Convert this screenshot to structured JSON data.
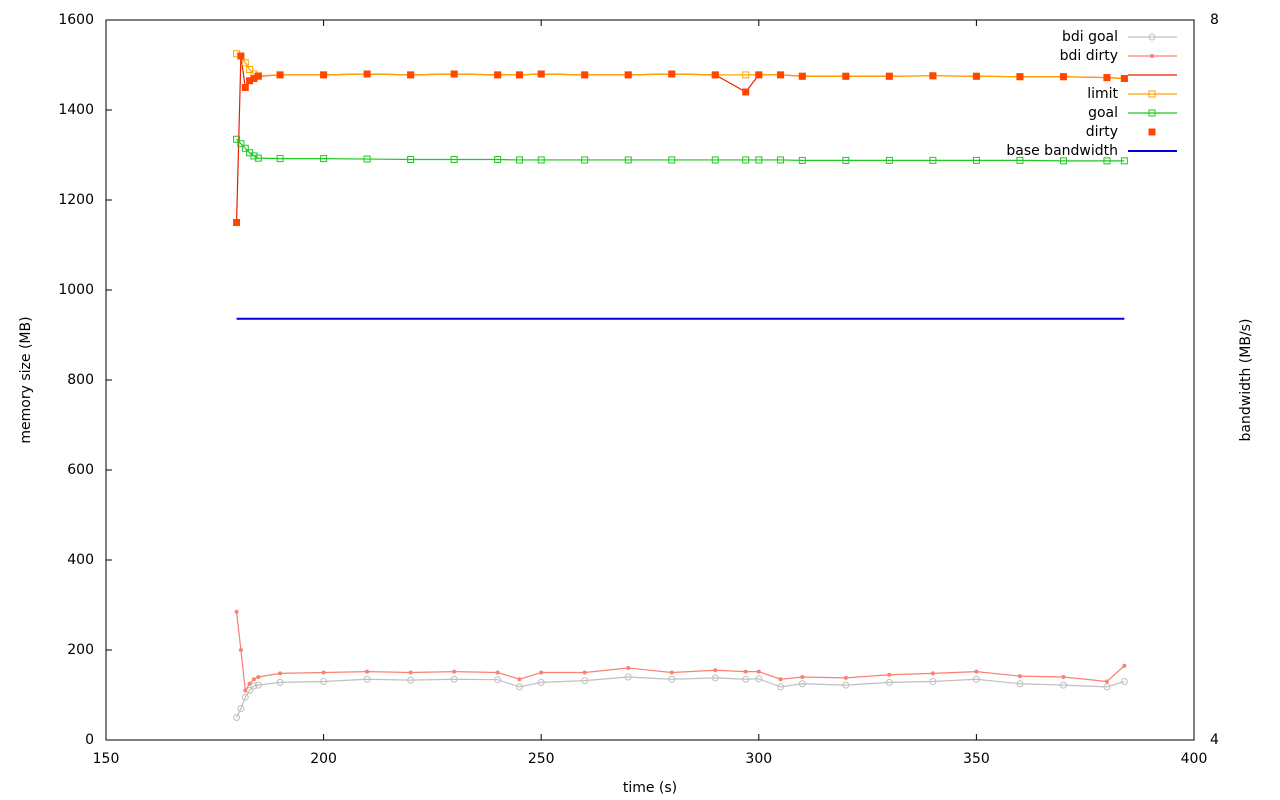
{
  "chart_data": {
    "type": "line",
    "xlabel": "time (s)",
    "ylabel": "memory size (MB)",
    "y2label": "bandwidth (MB/s)",
    "xlim": [
      150,
      400
    ],
    "xticks": [
      150,
      200,
      250,
      300,
      350,
      400
    ],
    "ylim": [
      0,
      1600
    ],
    "yticks": [
      0,
      200,
      400,
      600,
      800,
      1000,
      1200,
      1400,
      1600
    ],
    "y2lim": [
      4,
      8
    ],
    "y2ticks": [
      4,
      8
    ],
    "legend": "top-right",
    "x": [
      180,
      181,
      182,
      183,
      184,
      185,
      190,
      200,
      210,
      220,
      230,
      240,
      245,
      250,
      260,
      270,
      280,
      290,
      297,
      300,
      305,
      310,
      320,
      330,
      340,
      350,
      360,
      370,
      380,
      384
    ],
    "series": [
      {
        "name": "bdi goal",
        "color": "#c0c0c0",
        "style": "linespoints",
        "marker": "circle-open",
        "values": [
          50,
          70,
          95,
          110,
          120,
          122,
          128,
          130,
          135,
          133,
          135,
          134,
          118,
          128,
          132,
          140,
          135,
          138,
          135,
          136,
          118,
          125,
          122,
          128,
          130,
          135,
          125,
          122,
          118,
          130
        ]
      },
      {
        "name": "bdi dirty",
        "color": "#fa8072",
        "style": "linespoints",
        "marker": "circle",
        "values": [
          285,
          200,
          110,
          125,
          135,
          140,
          148,
          150,
          152,
          150,
          152,
          150,
          135,
          150,
          150,
          160,
          150,
          155,
          152,
          152,
          135,
          140,
          138,
          145,
          148,
          152,
          142,
          140,
          130,
          165
        ]
      },
      {
        "color": "#e82000",
        "style": "lines",
        "values": [
          1150,
          1520,
          1450,
          1465,
          1470,
          1475,
          1478,
          1478,
          1480,
          1478,
          1480,
          1478,
          1478,
          1480,
          1478,
          1478,
          1480,
          1478,
          1440,
          1478,
          1478,
          1475,
          1475,
          1475,
          1476,
          1475,
          1474,
          1474,
          1472,
          1470
        ]
      },
      {
        "name": "limit",
        "color": "#ffa500",
        "style": "linespoints",
        "marker": "square-open",
        "values": [
          1525,
          1520,
          1505,
          1490,
          1480,
          1476,
          1478,
          1478,
          1480,
          1478,
          1480,
          1478,
          1478,
          1480,
          1478,
          1478,
          1480,
          1478,
          1478,
          1478,
          1478,
          1475,
          1475,
          1475,
          1476,
          1475,
          1474,
          1474,
          1472,
          1470
        ]
      },
      {
        "name": "goal",
        "color": "#1ec81e",
        "style": "linespoints",
        "marker": "square-open",
        "values": [
          1335,
          1325,
          1315,
          1305,
          1298,
          1293,
          1292,
          1292,
          1291,
          1290,
          1290,
          1290,
          1289,
          1289,
          1289,
          1289,
          1289,
          1289,
          1289,
          1289,
          1289,
          1288,
          1288,
          1288,
          1288,
          1288,
          1288,
          1287,
          1287,
          1287
        ]
      },
      {
        "name": "dirty",
        "color": "#ff4500",
        "style": "points",
        "marker": "square",
        "values": [
          1150,
          1520,
          1450,
          1465,
          1470,
          1475,
          1478,
          1478,
          1480,
          1478,
          1480,
          1478,
          1478,
          1480,
          1478,
          1478,
          1480,
          1478,
          1440,
          1478,
          1478,
          1475,
          1475,
          1475,
          1476,
          1475,
          1474,
          1474,
          1472,
          1470
        ]
      },
      {
        "name": "base bandwidth",
        "color": "#0000e0",
        "style": "lines",
        "axis": "y2",
        "values": [
          6.34,
          6.34,
          6.34,
          6.34,
          6.34,
          6.34,
          6.34,
          6.34,
          6.34,
          6.34,
          6.34,
          6.34,
          6.34,
          6.34,
          6.34,
          6.34,
          6.34,
          6.34,
          6.34,
          6.34,
          6.34,
          6.34,
          6.34,
          6.34,
          6.34,
          6.34,
          6.34,
          6.34,
          6.34,
          6.34
        ]
      }
    ]
  }
}
